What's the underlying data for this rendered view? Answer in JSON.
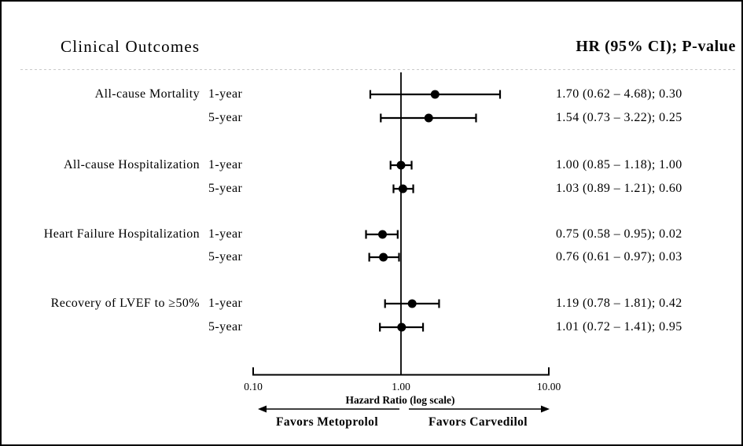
{
  "header": {
    "title": "Clinical Outcomes",
    "value_column": "HR (95% CI); P-value"
  },
  "chart_data": {
    "type": "forest",
    "x_scale": "log",
    "x_axis_range": [
      0.1,
      10.0
    ],
    "x_tick_values": [
      0.1,
      1.0,
      10.0
    ],
    "x_tick_labels": [
      "0.10",
      "1.00",
      "10.00"
    ],
    "xlabel": "Hazard Ratio (log scale)",
    "reference_line": 1.0,
    "arrow_left_label": "Favors Metoprolol",
    "arrow_right_label": "Favors Carvedilol",
    "groups": [
      {
        "outcome": "All-cause Mortality",
        "rows": [
          {
            "time": "1-year",
            "hr": 1.7,
            "ci_low": 0.62,
            "ci_high": 4.68,
            "p_value": "0.30",
            "display": "1.70 (0.62 – 4.68); 0.30"
          },
          {
            "time": "5-year",
            "hr": 1.54,
            "ci_low": 0.73,
            "ci_high": 3.22,
            "p_value": "0.25",
            "display": "1.54 (0.73 – 3.22); 0.25"
          }
        ]
      },
      {
        "outcome": "All-cause Hospitalization",
        "rows": [
          {
            "time": "1-year",
            "hr": 1.0,
            "ci_low": 0.85,
            "ci_high": 1.18,
            "p_value": "1.00",
            "display": "1.00 (0.85 – 1.18); 1.00"
          },
          {
            "time": "5-year",
            "hr": 1.03,
            "ci_low": 0.89,
            "ci_high": 1.21,
            "p_value": "0.60",
            "display": "1.03 (0.89 – 1.21); 0.60"
          }
        ]
      },
      {
        "outcome": "Heart Failure Hospitalization",
        "rows": [
          {
            "time": "1-year",
            "hr": 0.75,
            "ci_low": 0.58,
            "ci_high": 0.95,
            "p_value": "0.02",
            "display": "0.75 (0.58 – 0.95); 0.02"
          },
          {
            "time": "5-year",
            "hr": 0.76,
            "ci_low": 0.61,
            "ci_high": 0.97,
            "p_value": "0.03",
            "display": "0.76 (0.61 – 0.97); 0.03"
          }
        ]
      },
      {
        "outcome": "Recovery of LVEF to ≥50%",
        "rows": [
          {
            "time": "1-year",
            "hr": 1.19,
            "ci_low": 0.78,
            "ci_high": 1.81,
            "p_value": "0.42",
            "display": "1.19 (0.78 – 1.81); 0.42"
          },
          {
            "time": "5-year",
            "hr": 1.01,
            "ci_low": 0.72,
            "ci_high": 1.41,
            "p_value": "0.95",
            "display": "1.01 (0.72 – 1.41); 0.95"
          }
        ]
      }
    ]
  },
  "colors": {
    "ink": "#000000",
    "divider": "#c9c9c9",
    "background": "#ffffff",
    "border": "#000000"
  }
}
